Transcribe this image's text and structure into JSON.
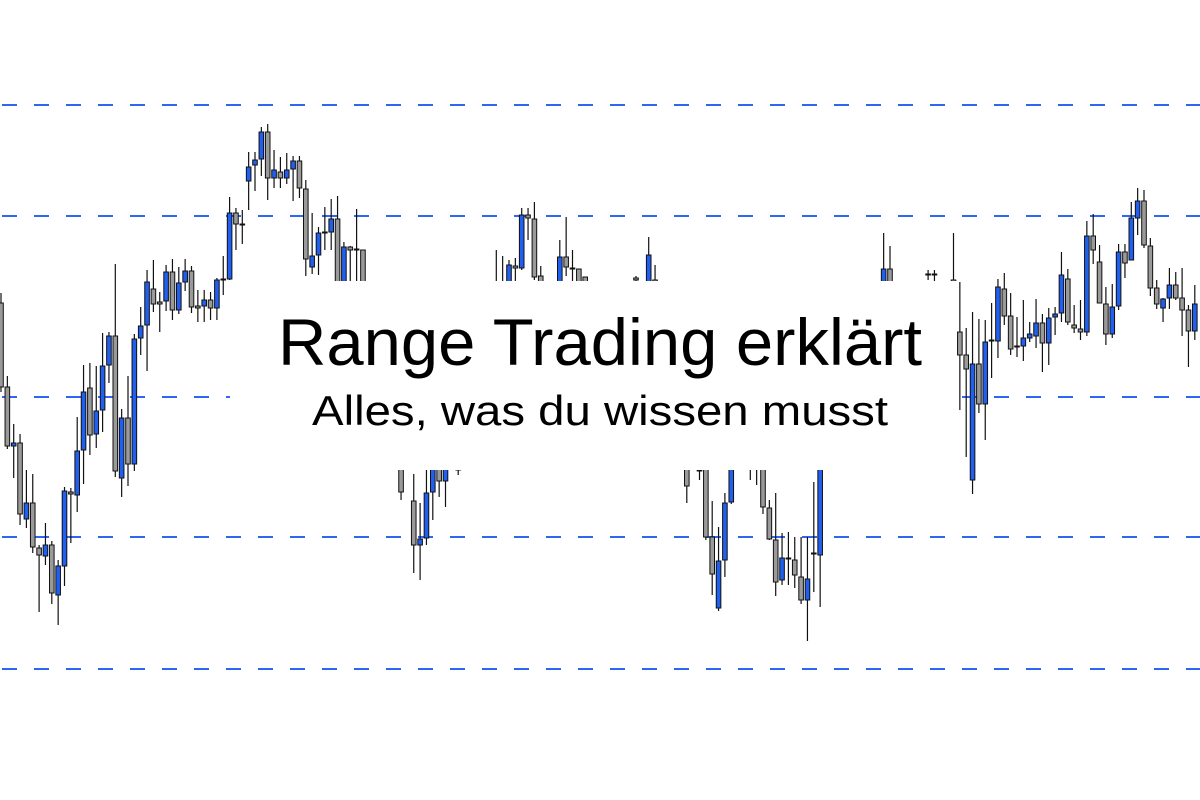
{
  "header": {
    "title": "Range Trading erklärt",
    "subtitle": "Alles, was du wissen musst"
  },
  "colors": {
    "background": "#ffffff",
    "level_line": "#2f66f5",
    "bullish_body": "#2160ee",
    "bearish_body": "#9a9a9a",
    "outline": "#111111",
    "text": "#000000"
  },
  "chart_data": {
    "type": "candlestick",
    "title": "",
    "xlabel": "",
    "ylabel": "",
    "ylim": [
      20,
      100
    ],
    "grid": false,
    "axes_visible": false,
    "legend": "none",
    "horizontal_levels": [
      89.5,
      78.4,
      60.3,
      46.3,
      33.1
    ],
    "candle_fields": [
      "index",
      "open",
      "high",
      "low",
      "close"
    ],
    "candles": [
      [
        0,
        69.7,
        70.7,
        60.8,
        61.3
      ],
      [
        1,
        61.3,
        62.4,
        55.1,
        55.4
      ],
      [
        2,
        55.4,
        57.6,
        52.2,
        55.7
      ],
      [
        3,
        55.7,
        56.6,
        47.5,
        48.6
      ],
      [
        4,
        48.1,
        53.0,
        47.2,
        49.7
      ],
      [
        5,
        49.7,
        52.6,
        44.7,
        45.3
      ],
      [
        6,
        45.2,
        45.5,
        38.8,
        44.5
      ],
      [
        7,
        44.4,
        47.7,
        43.5,
        45.5
      ],
      [
        8,
        45.5,
        45.9,
        39.6,
        40.7
      ],
      [
        9,
        40.5,
        44.0,
        37.5,
        43.4
      ],
      [
        10,
        43.4,
        51.3,
        41.4,
        50.9
      ],
      [
        11,
        50.8,
        51.2,
        45.7,
        50.6
      ],
      [
        12,
        50.5,
        58.3,
        48.8,
        54.9
      ],
      [
        13,
        55.0,
        63.5,
        51.6,
        60.8
      ],
      [
        14,
        61.2,
        63.7,
        54.5,
        56.5
      ],
      [
        15,
        56.6,
        63.4,
        55.2,
        58.9
      ],
      [
        16,
        59.0,
        66.7,
        56.8,
        63.4
      ],
      [
        17,
        63.5,
        66.8,
        61.7,
        66.4
      ],
      [
        18,
        66.4,
        73.6,
        52.3,
        52.9
      ],
      [
        19,
        52.2,
        59.1,
        50.3,
        58.2
      ],
      [
        20,
        58.2,
        62.4,
        51.4,
        53.6
      ],
      [
        21,
        53.6,
        66.6,
        52.9,
        66.1
      ],
      [
        22,
        66.2,
        69.3,
        64.5,
        67.4
      ],
      [
        23,
        67.5,
        73.0,
        62.9,
        71.8
      ],
      [
        24,
        71.1,
        74.0,
        68.8,
        69.6
      ],
      [
        25,
        69.8,
        70.8,
        66.8,
        69.6
      ],
      [
        26,
        69.9,
        73.5,
        68.9,
        72.8
      ],
      [
        27,
        72.8,
        74.1,
        68.0,
        69.0
      ],
      [
        28,
        69.0,
        73.3,
        68.6,
        71.7
      ],
      [
        29,
        71.8,
        74.1,
        70.9,
        72.9
      ],
      [
        30,
        72.9,
        73.4,
        68.7,
        69.3
      ],
      [
        31,
        69.4,
        71.0,
        67.8,
        69.2
      ],
      [
        32,
        69.4,
        71.0,
        67.8,
        70.0
      ],
      [
        33,
        70.0,
        70.8,
        68.0,
        69.2
      ],
      [
        34,
        69.2,
        72.2,
        68.0,
        72.0
      ],
      [
        35,
        72.0,
        74.4,
        70.5,
        72.1
      ],
      [
        36,
        72.1,
        80.3,
        72.0,
        78.7
      ],
      [
        37,
        78.7,
        79.2,
        75.0,
        77.6
      ],
      [
        38,
        77.6,
        79.0,
        75.6,
        77.5
      ],
      [
        39,
        81.9,
        84.8,
        79.0,
        83.3
      ],
      [
        40,
        83.5,
        84.8,
        80.9,
        84.0
      ],
      [
        41,
        84.1,
        87.3,
        82.4,
        86.8
      ],
      [
        42,
        86.8,
        87.6,
        80.0,
        82.2
      ],
      [
        43,
        82.2,
        85.0,
        81.2,
        83.0
      ],
      [
        44,
        82.8,
        84.3,
        81.2,
        82.2
      ],
      [
        45,
        82.2,
        84.7,
        81.6,
        83.0
      ],
      [
        46,
        83.1,
        84.4,
        79.9,
        83.9
      ],
      [
        47,
        83.9,
        84.4,
        80.2,
        81.2
      ],
      [
        48,
        81.1,
        82.0,
        72.4,
        74.1
      ],
      [
        49,
        73.3,
        78.7,
        72.6,
        74.4
      ],
      [
        50,
        74.5,
        77.3,
        72.5,
        76.7
      ],
      [
        51,
        76.7,
        79.3,
        75.0,
        76.8
      ],
      [
        52,
        76.8,
        80.1,
        75.0,
        78.1
      ],
      [
        53,
        78.1,
        80.4,
        69.0,
        70.0
      ],
      [
        54,
        70.0,
        75.8,
        69.0,
        75.3
      ],
      [
        55,
        75.3,
        75.4,
        70.0,
        75.0
      ],
      [
        56,
        75.1,
        79.1,
        70.0,
        75.0
      ],
      [
        57,
        75.0,
        75.0,
        69.0,
        70.0
      ],
      [
        63,
        55.0,
        56.0,
        50.0,
        50.8
      ],
      [
        65,
        49.9,
        52.6,
        42.7,
        45.5
      ],
      [
        66,
        45.5,
        49.7,
        42.0,
        46.1
      ],
      [
        67,
        46.2,
        53.0,
        45.5,
        50.7
      ],
      [
        68,
        50.8,
        56.0,
        48.0,
        55.0
      ],
      [
        69,
        55.0,
        56.0,
        50.3,
        51.9
      ],
      [
        70,
        51.9,
        56.0,
        49.3,
        55.0
      ],
      [
        72,
        53.0,
        54.0,
        52.5,
        53.2
      ],
      [
        78,
        71.0,
        75.0,
        70.0,
        71.2
      ],
      [
        79,
        71.0,
        74.4,
        70.0,
        71.2
      ],
      [
        80,
        70.0,
        74.0,
        69.5,
        73.5
      ],
      [
        81,
        73.4,
        74.2,
        71.0,
        73.2
      ],
      [
        82,
        73.2,
        79.2,
        73.0,
        78.5
      ],
      [
        83,
        78.5,
        79.2,
        76.0,
        78.2
      ],
      [
        84,
        78.1,
        79.8,
        72.0,
        72.3
      ],
      [
        85,
        72.4,
        73.4,
        70.0,
        70.5
      ],
      [
        88,
        70.0,
        76.0,
        69.5,
        74.3
      ],
      [
        89,
        74.3,
        78.3,
        72.4,
        73.3
      ],
      [
        90,
        73.2,
        75.0,
        71.0,
        73.1
      ],
      [
        91,
        73.1,
        73.1,
        70.0,
        71.0
      ],
      [
        92,
        72.3,
        72.3,
        70.0,
        70.5
      ],
      [
        100,
        72.2,
        72.4,
        70.0,
        72.0
      ],
      [
        102,
        70.0,
        76.3,
        70.0,
        74.5
      ],
      [
        103,
        72.0,
        73.5,
        70.0,
        71.5
      ],
      [
        108,
        55.0,
        56.0,
        49.7,
        51.4
      ],
      [
        110,
        53.0,
        54.0,
        52.0,
        53.0
      ],
      [
        111,
        55.0,
        56.0,
        46.0,
        46.3
      ],
      [
        112,
        46.3,
        49.9,
        40.5,
        42.6
      ],
      [
        113,
        39.2,
        47.3,
        38.9,
        43.9
      ],
      [
        114,
        44.0,
        50.7,
        42.3,
        49.7
      ],
      [
        115,
        49.8,
        56.0,
        49.6,
        55.0
      ],
      [
        118,
        54.0,
        55.0,
        52.0,
        54.0
      ],
      [
        119,
        54.0,
        55.0,
        51.5,
        53.5
      ],
      [
        120,
        55.0,
        56.0,
        48.6,
        49.3
      ],
      [
        121,
        49.2,
        50.0,
        46.0,
        46.1
      ],
      [
        122,
        46.0,
        50.7,
        40.4,
        41.8
      ],
      [
        123,
        42.0,
        46.7,
        41.5,
        44.2
      ],
      [
        124,
        44.2,
        46.8,
        41.5,
        44.1
      ],
      [
        125,
        44.0,
        46.3,
        41.2,
        42.5
      ],
      [
        126,
        42.3,
        46.3,
        39.6,
        40.0
      ],
      [
        127,
        40.0,
        46.3,
        35.9,
        42.1
      ],
      [
        128,
        44.6,
        51.8,
        40.8,
        44.7
      ],
      [
        129,
        44.5,
        56.0,
        39.3,
        55.0
      ],
      [
        139,
        70.0,
        76.7,
        69.5,
        73.1
      ],
      [
        140,
        73.1,
        75.4,
        69.5,
        70.0
      ],
      [
        146,
        72.5,
        73.0,
        72.0,
        72.6
      ],
      [
        147,
        72.6,
        73.0,
        71.5,
        72.5
      ],
      [
        150,
        72.0,
        76.7,
        70.0,
        71.0
      ],
      [
        151,
        66.8,
        71.8,
        59.0,
        64.5
      ],
      [
        152,
        64.5,
        67.2,
        54.3,
        63.1
      ],
      [
        153,
        52.0,
        68.8,
        50.6,
        63.6
      ],
      [
        154,
        63.6,
        68.1,
        58.7,
        59.6
      ],
      [
        155,
        59.6,
        68.0,
        56.0,
        65.8
      ],
      [
        156,
        65.9,
        69.7,
        62.2,
        66.0
      ],
      [
        157,
        65.9,
        72.1,
        64.2,
        71.3
      ],
      [
        158,
        71.1,
        72.7,
        67.5,
        68.4
      ],
      [
        159,
        68.4,
        70.7,
        64.5,
        65.1
      ],
      [
        160,
        65.3,
        68.3,
        64.3,
        65.4
      ],
      [
        161,
        65.4,
        70.0,
        63.9,
        66.2
      ],
      [
        162,
        66.2,
        67.8,
        65.8,
        66.6
      ],
      [
        163,
        66.4,
        70.1,
        65.2,
        67.7
      ],
      [
        164,
        67.7,
        68.6,
        62.8,
        65.7
      ],
      [
        165,
        65.7,
        69.2,
        63.5,
        68.2
      ],
      [
        166,
        68.3,
        69.3,
        66.5,
        68.6
      ],
      [
        167,
        68.7,
        74.8,
        67.8,
        72.5
      ],
      [
        168,
        72.1,
        73.1,
        67.5,
        67.8
      ],
      [
        169,
        67.5,
        69.5,
        66.7,
        67.2
      ],
      [
        170,
        67.1,
        70.0,
        66.0,
        66.8
      ],
      [
        171,
        66.8,
        77.9,
        66.4,
        76.4
      ],
      [
        172,
        76.4,
        78.6,
        73.6,
        75.0
      ],
      [
        173,
        73.8,
        75.5,
        69.7,
        69.7
      ],
      [
        174,
        69.6,
        71.3,
        65.5,
        66.6
      ],
      [
        175,
        66.6,
        71.6,
        66.2,
        69.3
      ],
      [
        176,
        69.4,
        75.6,
        69.0,
        74.8
      ],
      [
        177,
        74.8,
        75.6,
        72.2,
        73.7
      ],
      [
        178,
        74.0,
        79.8,
        74.0,
        78.2
      ],
      [
        179,
        78.2,
        81.2,
        76.5,
        79.9
      ],
      [
        180,
        79.9,
        81.0,
        75.2,
        75.5
      ],
      [
        181,
        75.4,
        76.2,
        70.4,
        71.2
      ],
      [
        182,
        71.2,
        72.0,
        69.1,
        69.6
      ],
      [
        183,
        69.2,
        70.2,
        67.8,
        70.1
      ],
      [
        184,
        70.2,
        73.2,
        69.1,
        71.5
      ],
      [
        185,
        71.5,
        72.8,
        70.0,
        70.2
      ],
      [
        186,
        70.2,
        73.2,
        66.4,
        69.0
      ],
      [
        187,
        69.0,
        69.5,
        63.3,
        66.9
      ],
      [
        188,
        66.9,
        71.5,
        66.0,
        69.6
      ]
    ]
  }
}
